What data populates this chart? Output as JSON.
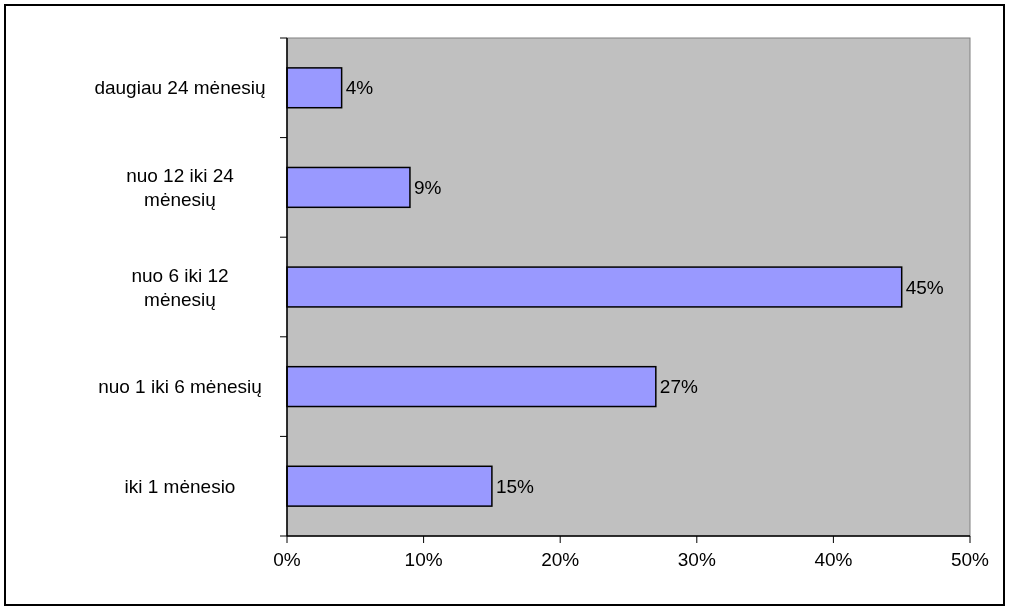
{
  "chart_data": {
    "type": "bar",
    "orientation": "horizontal",
    "categories": [
      "daugiau 24 mėnesių",
      "nuo 12 iki 24 mėnesių",
      "nuo 6 iki 12 mėnesių",
      "nuo 1 iki 6 mėnesių",
      "iki 1 mėnesio"
    ],
    "values": [
      4,
      9,
      45,
      27,
      15
    ],
    "value_labels": [
      "4%",
      "9%",
      "45%",
      "27%",
      "15%"
    ],
    "color": "#9999ff",
    "xlim": [
      0,
      50
    ],
    "xticks": [
      {
        "value": 0,
        "label": "0%"
      },
      {
        "value": 10,
        "label": "10%"
      },
      {
        "value": 20,
        "label": "20%"
      },
      {
        "value": 30,
        "label": "30%"
      },
      {
        "value": 40,
        "label": "40%"
      },
      {
        "value": 50,
        "label": "50%"
      }
    ],
    "grid": false
  }
}
